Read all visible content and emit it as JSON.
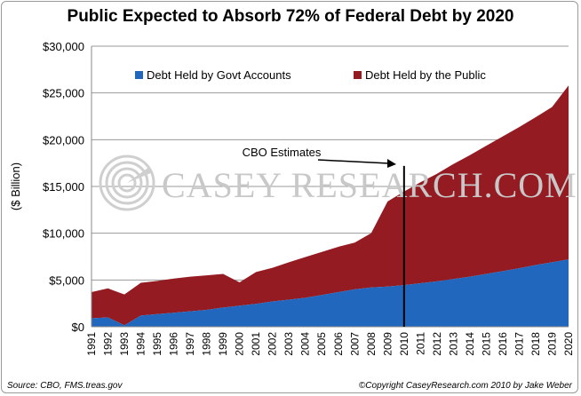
{
  "chart_data": {
    "type": "area",
    "title": "Public Expected to Absorb 72% of Federal Debt by 2020",
    "ylabel": "($ Billion)",
    "ylim": [
      0,
      30000
    ],
    "yticks": [
      "$0",
      "$5,000",
      "$10,000",
      "$15,000",
      "$20,000",
      "$25,000",
      "$30,000"
    ],
    "x": [
      "1991",
      "1992",
      "1993",
      "1994",
      "1995",
      "1996",
      "1997",
      "1998",
      "1999",
      "2000",
      "2001",
      "2002",
      "2003",
      "2004",
      "2005",
      "2006",
      "2007",
      "2008",
      "2009",
      "2010",
      "2011",
      "2012",
      "2013",
      "2014",
      "2015",
      "2016",
      "2017",
      "2018",
      "2019",
      "2020"
    ],
    "series": [
      {
        "name": "Debt Held by Govt Accounts",
        "color": "#2167be",
        "values": [
          900,
          1000,
          150,
          1200,
          1350,
          1500,
          1650,
          1800,
          2050,
          2250,
          2450,
          2700,
          2900,
          3100,
          3400,
          3700,
          4000,
          4200,
          4300,
          4450,
          4650,
          4850,
          5100,
          5350,
          5650,
          5950,
          6250,
          6600,
          6900,
          7200
        ]
      },
      {
        "name": "Debt Held by the Public",
        "color": "#941b22",
        "values": [
          2800,
          3100,
          3300,
          3500,
          3550,
          3650,
          3700,
          3700,
          3600,
          2500,
          3400,
          3600,
          4000,
          4350,
          4600,
          4850,
          5000,
          5800,
          9100,
          10000,
          10800,
          11500,
          12300,
          13000,
          13700,
          14400,
          15100,
          15800,
          16600,
          18600
        ]
      }
    ],
    "legend": "top-left",
    "grid": true,
    "annotations": [
      {
        "text": "CBO Estimates",
        "x": "2010"
      }
    ]
  },
  "watermark": "CASEY RESEARCH.COM",
  "footer": {
    "source": "Source: CBO, FMS.treas.gov",
    "copyright": "©Copyright CaseyResearch.com 2010 by Jake Weber"
  },
  "colors": {
    "plot_bg": "#ffffff",
    "grid": "#9a9a9a",
    "annotation_line": "#000000"
  }
}
